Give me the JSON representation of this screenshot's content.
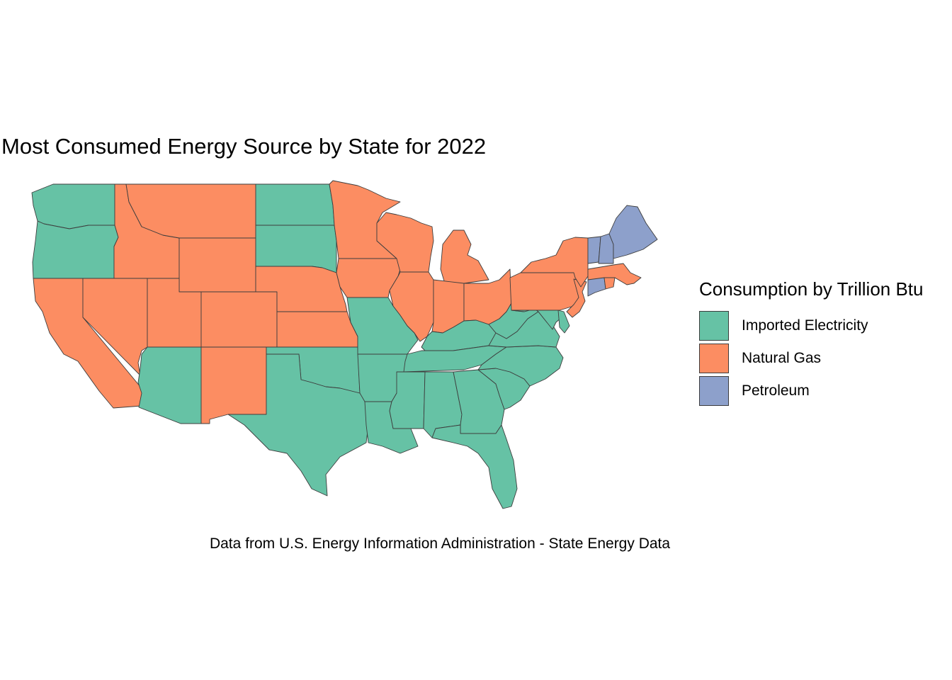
{
  "title": "Most Consumed Energy Source by State for 2022",
  "caption": "Data from U.S. Energy Information Administration - State Energy Data",
  "legend": {
    "title": "Consumption by Trillion Btu",
    "items": [
      {
        "key": "elec",
        "label": "Imported Electricity",
        "color": "#66c2a5"
      },
      {
        "key": "gas",
        "label": "Natural Gas",
        "color": "#fc8d62"
      },
      {
        "key": "pet",
        "label": "Petroleum",
        "color": "#8da0cb"
      }
    ]
  },
  "states": {
    "WA": "elec",
    "OR": "elec",
    "CA": "gas",
    "NV": "gas",
    "ID": "gas",
    "MT": "gas",
    "WY": "gas",
    "UT": "gas",
    "AZ": "elec",
    "CO": "gas",
    "NM": "gas",
    "ND": "elec",
    "SD": "elec",
    "NE": "gas",
    "KS": "gas",
    "OK": "elec",
    "TX": "elec",
    "MN": "gas",
    "IA": "gas",
    "MO": "elec",
    "AR": "elec",
    "LA": "elec",
    "WI": "gas",
    "IL": "gas",
    "MI": "gas",
    "IN": "gas",
    "OH": "gas",
    "KY": "elec",
    "TN": "elec",
    "MS": "elec",
    "AL": "elec",
    "GA": "elec",
    "FL": "elec",
    "SC": "elec",
    "NC": "elec",
    "VA": "elec",
    "WV": "elec",
    "MD": "elec",
    "DE": "elec",
    "PA": "gas",
    "NJ": "gas",
    "NY": "gas",
    "CT": "pet",
    "RI": "gas",
    "MA": "gas",
    "VT": "pet",
    "NH": "pet",
    "ME": "pet"
  }
}
